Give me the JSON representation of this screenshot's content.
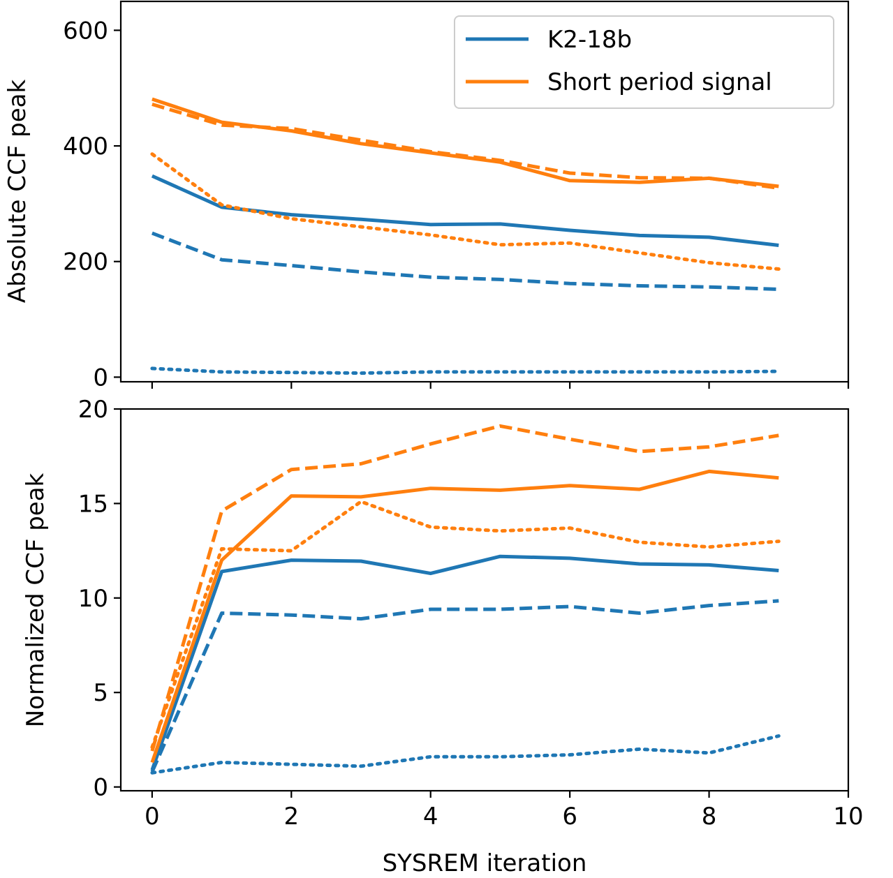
{
  "colors": {
    "k2": "#1f77b4",
    "short": "#ff7f0e"
  },
  "chart_data": [
    {
      "type": "line",
      "panel": "top",
      "ylabel": "Absolute CCF peak",
      "xlabel": "",
      "xlim": [
        -0.45,
        10
      ],
      "ylim": [
        -8,
        650
      ],
      "yticks": [
        0,
        200,
        400,
        600
      ],
      "ytick_labels": [
        "0",
        "200",
        "400",
        "600"
      ],
      "xticks": [
        0,
        2,
        4,
        6,
        8,
        10
      ],
      "legend": {
        "placement": "top-right",
        "entries": [
          {
            "label": "K2-18b",
            "color_key": "k2"
          },
          {
            "label": "Short period signal",
            "color_key": "short"
          }
        ]
      },
      "series": [
        {
          "name": "K2-18b",
          "style": "solid",
          "color_key": "k2",
          "x": [
            0,
            1,
            2,
            3,
            4,
            5,
            6,
            7,
            8,
            9
          ],
          "values": [
            348,
            294,
            281,
            273,
            264,
            265,
            254,
            245,
            242,
            228
          ]
        },
        {
          "name": "K2-18b",
          "style": "dashed",
          "color_key": "k2",
          "x": [
            0,
            1,
            2,
            3,
            4,
            5,
            6,
            7,
            8,
            9
          ],
          "values": [
            249,
            203,
            193,
            182,
            173,
            169,
            162,
            158,
            156,
            152
          ]
        },
        {
          "name": "K2-18b",
          "style": "dotted",
          "color_key": "k2",
          "x": [
            0,
            1,
            2,
            3,
            4,
            5,
            6,
            7,
            8,
            9
          ],
          "values": [
            15,
            9,
            8,
            7,
            9,
            9,
            9,
            9,
            9,
            10
          ]
        },
        {
          "name": "Short period signal",
          "style": "solid",
          "color_key": "short",
          "x": [
            0,
            1,
            2,
            3,
            4,
            5,
            6,
            7,
            8,
            9
          ],
          "values": [
            481,
            441,
            426,
            404,
            388,
            372,
            340,
            337,
            344,
            330
          ]
        },
        {
          "name": "Short period signal",
          "style": "dashed",
          "color_key": "short",
          "x": [
            0,
            1,
            2,
            3,
            4,
            5,
            6,
            7,
            8,
            9
          ],
          "values": [
            472,
            436,
            430,
            410,
            390,
            375,
            353,
            345,
            344,
            327
          ]
        },
        {
          "name": "Short period signal",
          "style": "dotted",
          "color_key": "short",
          "x": [
            0,
            1,
            2,
            3,
            4,
            5,
            6,
            7,
            8,
            9
          ],
          "values": [
            386,
            298,
            274,
            260,
            246,
            229,
            232,
            215,
            198,
            187
          ]
        }
      ]
    },
    {
      "type": "line",
      "panel": "bottom",
      "ylabel": "Normalized CCF peak",
      "xlabel": "SYSREM iteration",
      "xlim": [
        -0.45,
        10
      ],
      "ylim": [
        -0.2,
        20
      ],
      "yticks": [
        0,
        5,
        10,
        15,
        20
      ],
      "ytick_labels": [
        "0",
        "5",
        "10",
        "15",
        "20"
      ],
      "xticks": [
        0,
        2,
        4,
        6,
        8,
        10
      ],
      "xtick_labels": [
        "0",
        "2",
        "4",
        "6",
        "8",
        "10"
      ],
      "series": [
        {
          "name": "K2-18b",
          "style": "solid",
          "color_key": "k2",
          "x": [
            0,
            1,
            2,
            3,
            4,
            5,
            6,
            7,
            8,
            9
          ],
          "values": [
            0.9,
            11.4,
            12.0,
            11.95,
            11.3,
            12.2,
            12.1,
            11.8,
            11.75,
            11.45
          ]
        },
        {
          "name": "K2-18b",
          "style": "dashed",
          "color_key": "k2",
          "x": [
            0,
            1,
            2,
            3,
            4,
            5,
            6,
            7,
            8,
            9
          ],
          "values": [
            0.8,
            9.2,
            9.1,
            8.9,
            9.4,
            9.4,
            9.55,
            9.2,
            9.6,
            9.85
          ]
        },
        {
          "name": "K2-18b",
          "style": "dotted",
          "color_key": "k2",
          "x": [
            0,
            1,
            2,
            3,
            4,
            5,
            6,
            7,
            8,
            9
          ],
          "values": [
            0.75,
            1.3,
            1.2,
            1.1,
            1.6,
            1.6,
            1.7,
            2.0,
            1.8,
            2.7
          ]
        },
        {
          "name": "Short period signal",
          "style": "solid",
          "color_key": "short",
          "x": [
            0,
            1,
            2,
            3,
            4,
            5,
            6,
            7,
            8,
            9
          ],
          "values": [
            1.3,
            12.0,
            15.4,
            15.35,
            15.8,
            15.7,
            15.95,
            15.75,
            16.7,
            16.35
          ]
        },
        {
          "name": "Short period signal",
          "style": "dashed",
          "color_key": "short",
          "x": [
            0,
            1,
            2,
            3,
            4,
            5,
            6,
            7,
            8,
            9
          ],
          "values": [
            1.9,
            14.6,
            16.8,
            17.1,
            18.15,
            19.1,
            18.4,
            17.75,
            18.0,
            18.6
          ]
        },
        {
          "name": "Short period signal",
          "style": "dotted",
          "color_key": "short",
          "x": [
            0,
            1,
            2,
            3,
            4,
            5,
            6,
            7,
            8,
            9
          ],
          "values": [
            2.1,
            12.6,
            12.5,
            15.1,
            13.75,
            13.55,
            13.7,
            12.95,
            12.7,
            13.0
          ]
        }
      ]
    }
  ]
}
